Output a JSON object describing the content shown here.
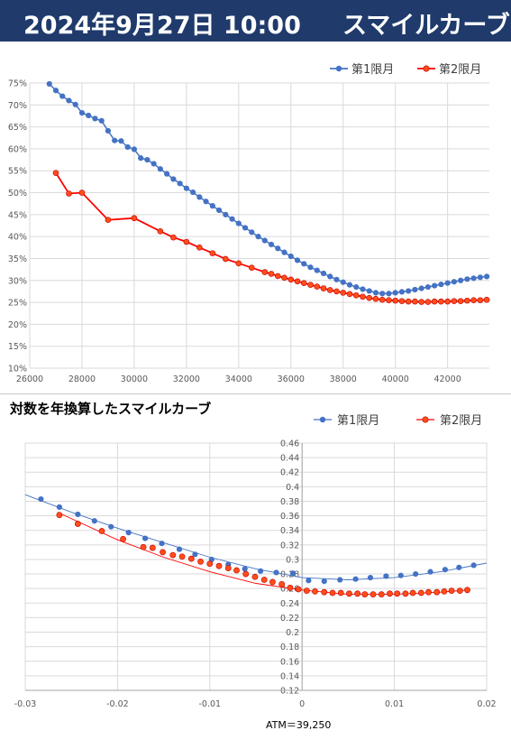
{
  "header": {
    "title": "2024年9月27日 10:00",
    "subtitle": "スマイルカーブ"
  },
  "chart_data": [
    {
      "type": "line",
      "title": "",
      "xlim": [
        26000,
        43600
      ],
      "ylim": [
        10,
        75
      ],
      "x_ticks": [
        26000,
        28000,
        30000,
        32000,
        34000,
        36000,
        38000,
        40000,
        42000
      ],
      "y_ticks": [
        10,
        15,
        20,
        25,
        30,
        35,
        40,
        45,
        50,
        55,
        60,
        65,
        70,
        75
      ],
      "y_tick_labels": [
        "10%",
        "15%",
        "20%",
        "25%",
        "30%",
        "35%",
        "40%",
        "45%",
        "50%",
        "55%",
        "60%",
        "65%",
        "70%",
        "75%"
      ],
      "legend_position": "top-right",
      "grid": true,
      "series": [
        {
          "name": "第1限月",
          "color": "#4472c4",
          "points": [
            [
              26750,
              74.8
            ],
            [
              27000,
              73.3
            ],
            [
              27250,
              72.0
            ],
            [
              27500,
              71.0
            ],
            [
              27750,
              70.1
            ],
            [
              28000,
              68.2
            ],
            [
              28250,
              67.6
            ],
            [
              28500,
              66.9
            ],
            [
              28750,
              66.4
            ],
            [
              29000,
              64.1
            ],
            [
              29250,
              61.9
            ],
            [
              29500,
              61.8
            ],
            [
              29750,
              60.4
            ],
            [
              30000,
              59.9
            ],
            [
              30250,
              57.9
            ],
            [
              30500,
              57.5
            ],
            [
              30750,
              56.6
            ],
            [
              31000,
              55.4
            ],
            [
              31250,
              54.3
            ],
            [
              31500,
              53.1
            ],
            [
              31750,
              52.1
            ],
            [
              32000,
              51.0
            ],
            [
              32250,
              50.1
            ],
            [
              32500,
              49.0
            ],
            [
              32750,
              48.0
            ],
            [
              33000,
              47.0
            ],
            [
              33250,
              46.0
            ],
            [
              33500,
              45.0
            ],
            [
              33750,
              44.0
            ],
            [
              34000,
              43.0
            ],
            [
              34250,
              42.0
            ],
            [
              34500,
              41.0
            ],
            [
              34750,
              40.0
            ],
            [
              35000,
              39.1
            ],
            [
              35250,
              38.2
            ],
            [
              35500,
              37.3
            ],
            [
              35750,
              36.4
            ],
            [
              36000,
              35.5
            ],
            [
              36250,
              34.6
            ],
            [
              36500,
              33.8
            ],
            [
              36750,
              33.0
            ],
            [
              37000,
              32.3
            ],
            [
              37250,
              31.6
            ],
            [
              37500,
              30.9
            ],
            [
              37750,
              30.2
            ],
            [
              38000,
              29.6
            ],
            [
              38250,
              29.0
            ],
            [
              38500,
              28.5
            ],
            [
              38750,
              28.0
            ],
            [
              39000,
              27.6
            ],
            [
              39250,
              27.2
            ],
            [
              39500,
              27.0
            ],
            [
              39750,
              27.0
            ],
            [
              40000,
              27.2
            ],
            [
              40250,
              27.4
            ],
            [
              40500,
              27.6
            ],
            [
              40750,
              27.9
            ],
            [
              41000,
              28.2
            ],
            [
              41250,
              28.5
            ],
            [
              41500,
              28.8
            ],
            [
              41750,
              29.1
            ],
            [
              42000,
              29.4
            ],
            [
              42250,
              29.7
            ],
            [
              42500,
              30.0
            ],
            [
              42750,
              30.3
            ],
            [
              43000,
              30.5
            ],
            [
              43250,
              30.7
            ],
            [
              43500,
              30.9
            ]
          ]
        },
        {
          "name": "第2限月",
          "color": "#ff0000",
          "points": [
            [
              27000,
              54.5
            ],
            [
              27500,
              49.8
            ],
            [
              28000,
              50.0
            ],
            [
              29000,
              43.8
            ],
            [
              30000,
              44.2
            ],
            [
              31000,
              41.2
            ],
            [
              31500,
              39.8
            ],
            [
              32000,
              38.8
            ],
            [
              32500,
              37.5
            ],
            [
              33000,
              36.2
            ],
            [
              33500,
              34.9
            ],
            [
              34000,
              33.9
            ],
            [
              34500,
              32.9
            ],
            [
              35000,
              31.9
            ],
            [
              35250,
              31.5
            ],
            [
              35500,
              31.0
            ],
            [
              35750,
              30.6
            ],
            [
              36000,
              30.2
            ],
            [
              36250,
              29.8
            ],
            [
              36500,
              29.4
            ],
            [
              36750,
              29.0
            ],
            [
              37000,
              28.6
            ],
            [
              37250,
              28.2
            ],
            [
              37500,
              27.8
            ],
            [
              37750,
              27.5
            ],
            [
              38000,
              27.2
            ],
            [
              38250,
              26.9
            ],
            [
              38500,
              26.6
            ],
            [
              38750,
              26.3
            ],
            [
              39000,
              26.0
            ],
            [
              39250,
              25.8
            ],
            [
              39500,
              25.6
            ],
            [
              39750,
              25.5
            ],
            [
              40000,
              25.4
            ],
            [
              40250,
              25.3
            ],
            [
              40500,
              25.2
            ],
            [
              40750,
              25.2
            ],
            [
              41000,
              25.1
            ],
            [
              41250,
              25.1
            ],
            [
              41500,
              25.2
            ],
            [
              41750,
              25.2
            ],
            [
              42000,
              25.2
            ],
            [
              42250,
              25.3
            ],
            [
              42500,
              25.3
            ],
            [
              42750,
              25.4
            ],
            [
              43000,
              25.5
            ],
            [
              43250,
              25.5
            ],
            [
              43500,
              25.6
            ]
          ]
        }
      ]
    },
    {
      "type": "scatter",
      "title": "対数を年換算したスマイルカーブ",
      "xlim": [
        -0.03,
        0.02
      ],
      "ylim": [
        0.12,
        0.46
      ],
      "x_ticks": [
        -0.03,
        -0.02,
        -0.01,
        0,
        0.01,
        0.02
      ],
      "x_tick_labels": [
        "-0.03",
        "-0.02",
        "-0.01",
        "0",
        "0.01",
        "0.02"
      ],
      "y_ticks": [
        0.12,
        0.14,
        0.16,
        0.18,
        0.2,
        0.22,
        0.24,
        0.26,
        0.28,
        0.3,
        0.32,
        0.34,
        0.36,
        0.38,
        0.4,
        0.42,
        0.44,
        0.46
      ],
      "y_tick_labels": [
        "0.12",
        "0.14",
        "0.16",
        "0.18",
        "0.2",
        "0.22",
        "0.24",
        "0.26",
        "0.28",
        "0.3",
        "0.32",
        "0.34",
        "0.36",
        "0.38",
        "0.4",
        "0.42",
        "0.44",
        "0.46"
      ],
      "annotation": "ATM＝39,250",
      "legend_position": "top-right",
      "grid": true,
      "series": [
        {
          "name": "第1限月",
          "color": "#4472c4",
          "trendline": [
            [
              -0.03,
              0.389
            ],
            [
              -0.025,
              0.365
            ],
            [
              -0.02,
              0.343
            ],
            [
              -0.015,
              0.323
            ],
            [
              -0.01,
              0.303
            ],
            [
              -0.005,
              0.287
            ],
            [
              0.0,
              0.275
            ],
            [
              0.005,
              0.272
            ],
            [
              0.01,
              0.275
            ],
            [
              0.015,
              0.283
            ],
            [
              0.02,
              0.295
            ]
          ],
          "points": [
            [
              -0.0283,
              0.383
            ],
            [
              -0.0263,
              0.372
            ],
            [
              -0.0243,
              0.362
            ],
            [
              -0.0225,
              0.353
            ],
            [
              -0.0207,
              0.345
            ],
            [
              -0.0188,
              0.337
            ],
            [
              -0.017,
              0.329
            ],
            [
              -0.0152,
              0.322
            ],
            [
              -0.0133,
              0.314
            ],
            [
              -0.0116,
              0.307
            ],
            [
              -0.0098,
              0.3
            ],
            [
              -0.008,
              0.293
            ],
            [
              -0.0062,
              0.287
            ],
            [
              -0.0045,
              0.284
            ],
            [
              -0.0028,
              0.282
            ],
            [
              -0.001,
              0.281
            ],
            [
              0.0007,
              0.271
            ],
            [
              0.0024,
              0.27
            ],
            [
              0.0041,
              0.272
            ],
            [
              0.0058,
              0.273
            ],
            [
              0.0074,
              0.275
            ],
            [
              0.0091,
              0.277
            ],
            [
              0.0107,
              0.278
            ],
            [
              0.0123,
              0.28
            ],
            [
              0.0139,
              0.283
            ],
            [
              0.0155,
              0.286
            ],
            [
              0.017,
              0.289
            ],
            [
              0.0186,
              0.292
            ]
          ]
        },
        {
          "name": "第2限月",
          "color": "#ff0000",
          "trendline": [
            [
              -0.0265,
              0.365
            ],
            [
              -0.02,
              0.327
            ],
            [
              -0.015,
              0.303
            ],
            [
              -0.01,
              0.283
            ],
            [
              -0.005,
              0.267
            ],
            [
              0.0,
              0.258
            ],
            [
              0.005,
              0.252
            ],
            [
              0.01,
              0.252
            ],
            [
              0.015,
              0.255
            ],
            [
              0.018,
              0.258
            ]
          ],
          "points": [
            [
              -0.0263,
              0.361
            ],
            [
              -0.0243,
              0.349
            ],
            [
              -0.0217,
              0.339
            ],
            [
              -0.0194,
              0.328
            ],
            [
              -0.0172,
              0.317
            ],
            [
              -0.0162,
              0.316
            ],
            [
              -0.0151,
              0.31
            ],
            [
              -0.014,
              0.306
            ],
            [
              -0.013,
              0.304
            ],
            [
              -0.012,
              0.301
            ],
            [
              -0.011,
              0.297
            ],
            [
              -0.01,
              0.294
            ],
            [
              -0.009,
              0.291
            ],
            [
              -0.008,
              0.288
            ],
            [
              -0.0071,
              0.285
            ],
            [
              -0.0061,
              0.28
            ],
            [
              -0.0051,
              0.276
            ],
            [
              -0.0041,
              0.272
            ],
            [
              -0.0032,
              0.269
            ],
            [
              -0.0022,
              0.266
            ],
            [
              -0.0013,
              0.261
            ],
            [
              -0.0004,
              0.259
            ],
            [
              0.0005,
              0.257
            ],
            [
              0.0014,
              0.256
            ],
            [
              0.0024,
              0.255
            ],
            [
              0.0033,
              0.254
            ],
            [
              0.0042,
              0.254
            ],
            [
              0.0051,
              0.253
            ],
            [
              0.006,
              0.253
            ],
            [
              0.0068,
              0.252
            ],
            [
              0.0077,
              0.252
            ],
            [
              0.0086,
              0.252
            ],
            [
              0.0095,
              0.253
            ],
            [
              0.0103,
              0.253
            ],
            [
              0.0112,
              0.253
            ],
            [
              0.012,
              0.254
            ],
            [
              0.0129,
              0.254
            ],
            [
              0.0137,
              0.255
            ],
            [
              0.0146,
              0.255
            ],
            [
              0.0154,
              0.256
            ],
            [
              0.0162,
              0.257
            ],
            [
              0.0171,
              0.257
            ],
            [
              0.0179,
              0.258
            ]
          ]
        }
      ]
    }
  ]
}
